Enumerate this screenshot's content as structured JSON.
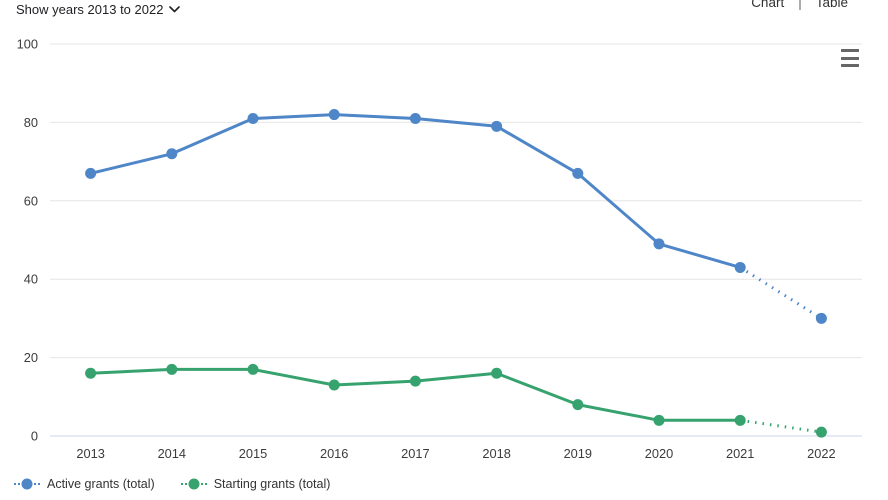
{
  "header": {
    "show_years_label": "Show years 2013 to 2022",
    "chart_tab_label": "Chart",
    "separator": "|",
    "table_tab_label": "Table"
  },
  "chart_data": {
    "type": "line",
    "categories": [
      "2013",
      "2014",
      "2015",
      "2016",
      "2017",
      "2018",
      "2019",
      "2020",
      "2021",
      "2022"
    ],
    "series": [
      {
        "name": "Active grants (total)",
        "color": "#4e86c8",
        "values": [
          67,
          72,
          81,
          82,
          81,
          79,
          67,
          49,
          43,
          30
        ],
        "dotted_from_index": 8
      },
      {
        "name": "Starting grants (total)",
        "color": "#36a36e",
        "values": [
          16,
          17,
          17,
          13,
          14,
          16,
          8,
          4,
          4,
          1
        ],
        "dotted_from_index": 8
      }
    ],
    "title": "",
    "xlabel": "",
    "ylabel": "",
    "ylim": [
      0,
      100
    ],
    "yticks": [
      0,
      20,
      40,
      60,
      80,
      100
    ],
    "grid": true,
    "grid_color": "#e6e6e6",
    "axis_line_color": "#ccd6eb",
    "legend_position": "bottom-left"
  }
}
